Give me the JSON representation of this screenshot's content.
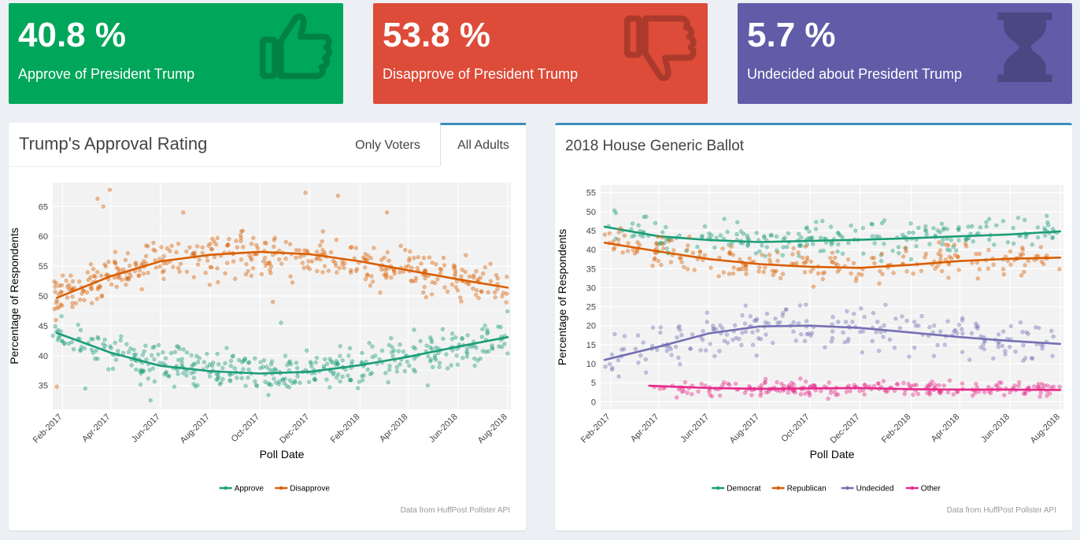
{
  "colors": {
    "approve_box": "#00a65a",
    "disapprove_box": "#dd4b39",
    "undecided_box": "#605ca8",
    "approve": "#1b9e77",
    "disapprove": "#d95f02",
    "undecided": "#7570b3",
    "other": "#e7298a",
    "panel_accent": "#3c8dbc"
  },
  "valueboxes": [
    {
      "value": "40.8 %",
      "label": "Approve of President Trump",
      "icon": "thumbs-up-icon"
    },
    {
      "value": "53.8 %",
      "label": "Disapprove of President Trump",
      "icon": "thumbs-down-icon"
    },
    {
      "value": "5.7 %",
      "label": "Undecided about President Trump",
      "icon": "hourglass-icon"
    }
  ],
  "approval_panel": {
    "title": "Trump's Approval Rating",
    "tabs": [
      "Only Voters",
      "All Adults"
    ],
    "active_tab": "All Adults",
    "source": "Data from HuffPost Pollster API"
  },
  "ballot_panel": {
    "title": "2018 House Generic Ballot",
    "source": "Data from HuffPost Pollster API"
  },
  "chart_data": [
    {
      "type": "scatter",
      "title": "Trump's Approval Rating",
      "xlabel": "Poll Date",
      "ylabel": "Percentage of Respondents",
      "x_ticks": [
        "Feb-2017",
        "Apr-2017",
        "Jun-2017",
        "Aug-2017",
        "Oct-2017",
        "Dec-2017",
        "Feb-2018",
        "Apr-2018",
        "Jun-2018",
        "Aug-2018"
      ],
      "x_range": [
        "2017-01-20",
        "2018-08-05"
      ],
      "ylim": [
        31,
        69
      ],
      "y_ticks": [
        35,
        40,
        45,
        50,
        55,
        60,
        65
      ],
      "grid": true,
      "legend": "bottom",
      "series": [
        {
          "name": "Approve",
          "trend": [
            [
              "2017-01-25",
              43.8
            ],
            [
              "2017-04-01",
              40.5
            ],
            [
              "2017-06-01",
              38.3
            ],
            [
              "2017-08-01",
              37.4
            ],
            [
              "2017-10-01",
              37.0
            ],
            [
              "2017-12-01",
              37.3
            ],
            [
              "2018-02-01",
              38.4
            ],
            [
              "2018-04-01",
              39.8
            ],
            [
              "2018-06-01",
              41.5
            ],
            [
              "2018-08-01",
              43.1
            ]
          ],
          "center": [
            [
              "2017-01-25",
              43.8
            ],
            [
              "2017-04-01",
              40.5
            ],
            [
              "2017-06-01",
              38.3
            ],
            [
              "2017-08-01",
              37.4
            ],
            [
              "2017-10-01",
              37.0
            ],
            [
              "2017-12-01",
              37.3
            ],
            [
              "2018-02-01",
              38.4
            ],
            [
              "2018-04-01",
              39.8
            ],
            [
              "2018-06-01",
              41.5
            ],
            [
              "2018-08-01",
              43.1
            ]
          ],
          "spread": 2.4,
          "outliers": [
            [
              40,
              34.5
            ],
            [
              120,
              32.5
            ],
            [
              280,
              45.5
            ],
            [
              460,
              35
            ]
          ]
        },
        {
          "name": "Disapprove",
          "trend": [
            [
              "2017-01-25",
              49.7
            ],
            [
              "2017-04-01",
              53.3
            ],
            [
              "2017-06-01",
              55.8
            ],
            [
              "2017-08-01",
              56.9
            ],
            [
              "2017-10-01",
              57.4
            ],
            [
              "2017-12-01",
              57.0
            ],
            [
              "2018-02-01",
              55.8
            ],
            [
              "2018-04-01",
              54.3
            ],
            [
              "2018-06-01",
              52.8
            ],
            [
              "2018-08-01",
              51.4
            ]
          ],
          "center": [
            [
              "2017-01-25",
              49.7
            ],
            [
              "2017-04-01",
              53.3
            ],
            [
              "2017-06-01",
              55.8
            ],
            [
              "2017-08-01",
              56.9
            ],
            [
              "2017-10-01",
              57.4
            ],
            [
              "2017-12-01",
              57.0
            ],
            [
              "2018-02-01",
              55.8
            ],
            [
              "2018-04-01",
              54.3
            ],
            [
              "2018-06-01",
              52.8
            ],
            [
              "2018-08-01",
              51.4
            ]
          ],
          "spread": 2.6,
          "outliers": [
            [
              5,
              34.8
            ],
            [
              55,
              66.3
            ],
            [
              70,
              67.8
            ],
            [
              62,
              65
            ],
            [
              160,
              64
            ],
            [
              310,
              67.3
            ],
            [
              350,
              66.8
            ],
            [
              410,
              64
            ],
            [
              270,
              49
            ]
          ]
        }
      ]
    },
    {
      "type": "scatter",
      "title": "2018 House Generic Ballot",
      "xlabel": "Poll Date",
      "ylabel": "Percentage of Respondents",
      "x_ticks": [
        "Feb-2017",
        "Apr-2017",
        "Jun-2017",
        "Aug-2017",
        "Oct-2017",
        "Dec-2017",
        "Feb-2018",
        "Apr-2018",
        "Jun-2018",
        "Aug-2018"
      ],
      "x_range": [
        "2017-01-20",
        "2018-08-05"
      ],
      "ylim": [
        -2,
        57
      ],
      "y_ticks": [
        0,
        5,
        10,
        15,
        20,
        25,
        30,
        35,
        40,
        45,
        50,
        55
      ],
      "grid": true,
      "legend": "bottom",
      "series": [
        {
          "name": "Democrat",
          "trend": [
            [
              "2017-01-25",
              46.0
            ],
            [
              "2017-04-01",
              43.5
            ],
            [
              "2017-06-01",
              42.5
            ],
            [
              "2017-08-01",
              42.0
            ],
            [
              "2017-10-01",
              42.3
            ],
            [
              "2017-12-01",
              42.6
            ],
            [
              "2018-02-01",
              43.0
            ],
            [
              "2018-04-01",
              43.5
            ],
            [
              "2018-06-01",
              44.0
            ],
            [
              "2018-08-01",
              44.8
            ]
          ],
          "spread": 3.2,
          "start": "2017-01-25"
        },
        {
          "name": "Republican",
          "trend": [
            [
              "2017-01-25",
              41.8
            ],
            [
              "2017-04-01",
              39.5
            ],
            [
              "2017-06-01",
              37.5
            ],
            [
              "2017-08-01",
              36.2
            ],
            [
              "2017-10-01",
              35.5
            ],
            [
              "2017-12-01",
              35.2
            ],
            [
              "2018-02-01",
              36.0
            ],
            [
              "2018-04-01",
              37.0
            ],
            [
              "2018-06-01",
              37.6
            ],
            [
              "2018-08-01",
              37.9
            ]
          ],
          "spread": 3.0,
          "start": "2017-01-25"
        },
        {
          "name": "Undecided",
          "trend": [
            [
              "2017-01-25",
              11.0
            ],
            [
              "2017-04-01",
              14.5
            ],
            [
              "2017-06-01",
              18.0
            ],
            [
              "2017-08-01",
              19.8
            ],
            [
              "2017-10-01",
              20.0
            ],
            [
              "2017-12-01",
              19.4
            ],
            [
              "2018-02-01",
              18.2
            ],
            [
              "2018-04-01",
              17.0
            ],
            [
              "2018-06-01",
              16.0
            ],
            [
              "2018-08-01",
              15.2
            ]
          ],
          "spread": 4.0,
          "start": "2017-01-25"
        },
        {
          "name": "Other",
          "trend": [
            [
              "2017-03-20",
              4.2
            ],
            [
              "2017-06-01",
              3.6
            ],
            [
              "2017-08-01",
              3.4
            ],
            [
              "2017-10-01",
              3.5
            ],
            [
              "2017-12-01",
              3.6
            ],
            [
              "2018-02-01",
              3.3
            ],
            [
              "2018-04-01",
              3.2
            ],
            [
              "2018-06-01",
              3.2
            ],
            [
              "2018-08-01",
              3.1
            ]
          ],
          "spread": 1.5,
          "start": "2017-03-20"
        }
      ]
    }
  ]
}
